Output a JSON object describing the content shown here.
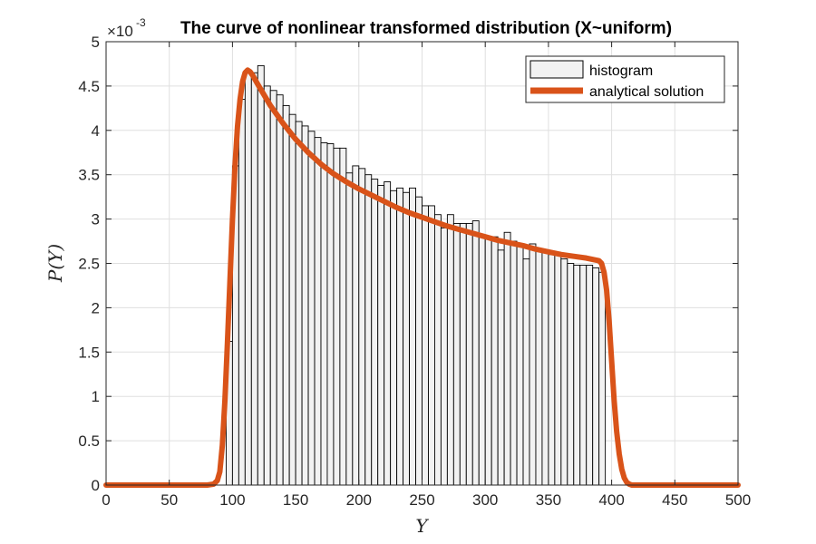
{
  "chart_data": {
    "type": "bar",
    "title": "The curve of nonlinear transformed distribution (X~uniform)",
    "xlabel": "Y",
    "ylabel": "P(Y)",
    "xlim": [
      0,
      500
    ],
    "ylim": [
      0,
      5
    ],
    "y_exponent_base": "×10",
    "y_exponent_power": "-3",
    "grid": true,
    "legend_position": "top-right",
    "xticks": [
      0,
      50,
      100,
      150,
      200,
      250,
      300,
      350,
      400,
      450,
      500
    ],
    "yticks": [
      0,
      0.5,
      1,
      1.5,
      2,
      2.5,
      3,
      3.5,
      4,
      4.5,
      5
    ],
    "xtick_labels": [
      "0",
      "50",
      "100",
      "150",
      "200",
      "250",
      "300",
      "350",
      "400",
      "450",
      "500"
    ],
    "ytick_labels": [
      "0",
      "0.5",
      "1",
      "1.5",
      "2",
      "2.5",
      "3",
      "3.5",
      "4",
      "4.5",
      "5"
    ],
    "histogram": {
      "name": "histogram",
      "color": "#f2f2f2",
      "edge_color": "#000000",
      "bin_edges": [
        95,
        100,
        105,
        110,
        115,
        120,
        125,
        130,
        135,
        140,
        145,
        150,
        155,
        160,
        165,
        170,
        175,
        180,
        185,
        190,
        195,
        200,
        205,
        210,
        215,
        220,
        225,
        230,
        235,
        240,
        245,
        250,
        255,
        260,
        265,
        270,
        275,
        280,
        285,
        290,
        295,
        300,
        305,
        310,
        315,
        320,
        325,
        330,
        335,
        340,
        345,
        350,
        355,
        360,
        365,
        370,
        375,
        380,
        385,
        390,
        395
      ],
      "values": [
        1.62,
        3.6,
        4.35,
        4.67,
        4.65,
        4.73,
        4.5,
        4.45,
        4.4,
        4.28,
        4.18,
        4.1,
        4.05,
        3.99,
        3.92,
        3.86,
        3.85,
        3.8,
        3.8,
        3.52,
        3.6,
        3.57,
        3.5,
        3.45,
        3.38,
        3.42,
        3.32,
        3.35,
        3.3,
        3.35,
        3.25,
        3.15,
        3.15,
        3.05,
        2.9,
        3.05,
        2.95,
        2.95,
        2.95,
        2.98,
        2.8,
        2.8,
        2.8,
        2.65,
        2.85,
        2.75,
        2.7,
        2.55,
        2.72,
        2.65,
        2.65,
        2.6,
        2.6,
        2.55,
        2.5,
        2.48,
        2.48,
        2.48,
        2.45,
        2.4
      ]
    },
    "series": [
      {
        "name": "analytical solution",
        "color": "#d95319",
        "x": [
          0,
          80,
          85,
          88,
          90,
          92,
          94,
          96,
          98,
          100,
          102,
          104,
          106,
          108,
          110,
          112,
          114,
          116,
          118,
          120,
          125,
          130,
          140,
          150,
          160,
          170,
          180,
          190,
          200,
          210,
          220,
          230,
          240,
          250,
          260,
          270,
          280,
          290,
          300,
          310,
          320,
          330,
          340,
          350,
          360,
          370,
          380,
          390,
          392,
          394,
          396,
          398,
          400,
          402,
          404,
          406,
          408,
          410,
          412,
          414,
          416,
          420,
          450,
          500
        ],
        "y": [
          0,
          0,
          0.01,
          0.05,
          0.15,
          0.45,
          0.95,
          1.6,
          2.3,
          3.0,
          3.6,
          4.05,
          4.35,
          4.55,
          4.65,
          4.68,
          4.66,
          4.62,
          4.57,
          4.52,
          4.4,
          4.28,
          4.08,
          3.9,
          3.75,
          3.62,
          3.51,
          3.42,
          3.34,
          3.27,
          3.2,
          3.13,
          3.07,
          3.02,
          2.97,
          2.92,
          2.88,
          2.84,
          2.8,
          2.76,
          2.73,
          2.7,
          2.66,
          2.63,
          2.6,
          2.58,
          2.56,
          2.53,
          2.5,
          2.4,
          2.2,
          1.85,
          1.4,
          0.95,
          0.6,
          0.35,
          0.18,
          0.08,
          0.03,
          0.01,
          0,
          0,
          0,
          0
        ]
      }
    ]
  }
}
